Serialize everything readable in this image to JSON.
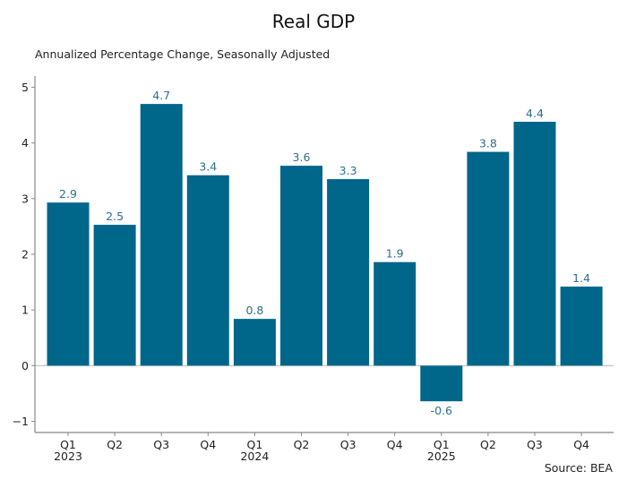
{
  "chart_data": {
    "type": "bar",
    "title": "Real GDP",
    "subtitle": "Annualized Percentage Change, Seasonally Adjusted",
    "source": "Source: BEA",
    "xlabel": "",
    "ylabel": "",
    "categories": [
      {
        "quarter": "Q1",
        "year": "2023"
      },
      {
        "quarter": "Q2",
        "year": ""
      },
      {
        "quarter": "Q3",
        "year": ""
      },
      {
        "quarter": "Q4",
        "year": ""
      },
      {
        "quarter": "Q1",
        "year": "2024"
      },
      {
        "quarter": "Q2",
        "year": ""
      },
      {
        "quarter": "Q3",
        "year": ""
      },
      {
        "quarter": "Q4",
        "year": ""
      },
      {
        "quarter": "Q1",
        "year": "2025"
      },
      {
        "quarter": "Q2",
        "year": ""
      },
      {
        "quarter": "Q3",
        "year": ""
      },
      {
        "quarter": "Q4",
        "year": ""
      }
    ],
    "values": [
      2.93,
      2.53,
      4.7,
      3.42,
      0.84,
      3.59,
      3.35,
      1.86,
      -0.64,
      3.84,
      4.38,
      1.42
    ],
    "data_labels": [
      "2.9",
      "2.5",
      "4.7",
      "3.4",
      "0.8",
      "3.6",
      "3.3",
      "1.9",
      "-0.6",
      "3.8",
      "4.4",
      "1.4"
    ],
    "yticks": [
      -1,
      0,
      1,
      2,
      3,
      4,
      5
    ],
    "ytick_labels": [
      "−1",
      "0",
      "1",
      "2",
      "3",
      "4",
      "5"
    ],
    "ylim": [
      -1.2,
      5.2
    ],
    "grid": false,
    "bar_color": "#00668a",
    "label_color": "#2c6f8e",
    "zero_line_color": "#cccccc"
  }
}
